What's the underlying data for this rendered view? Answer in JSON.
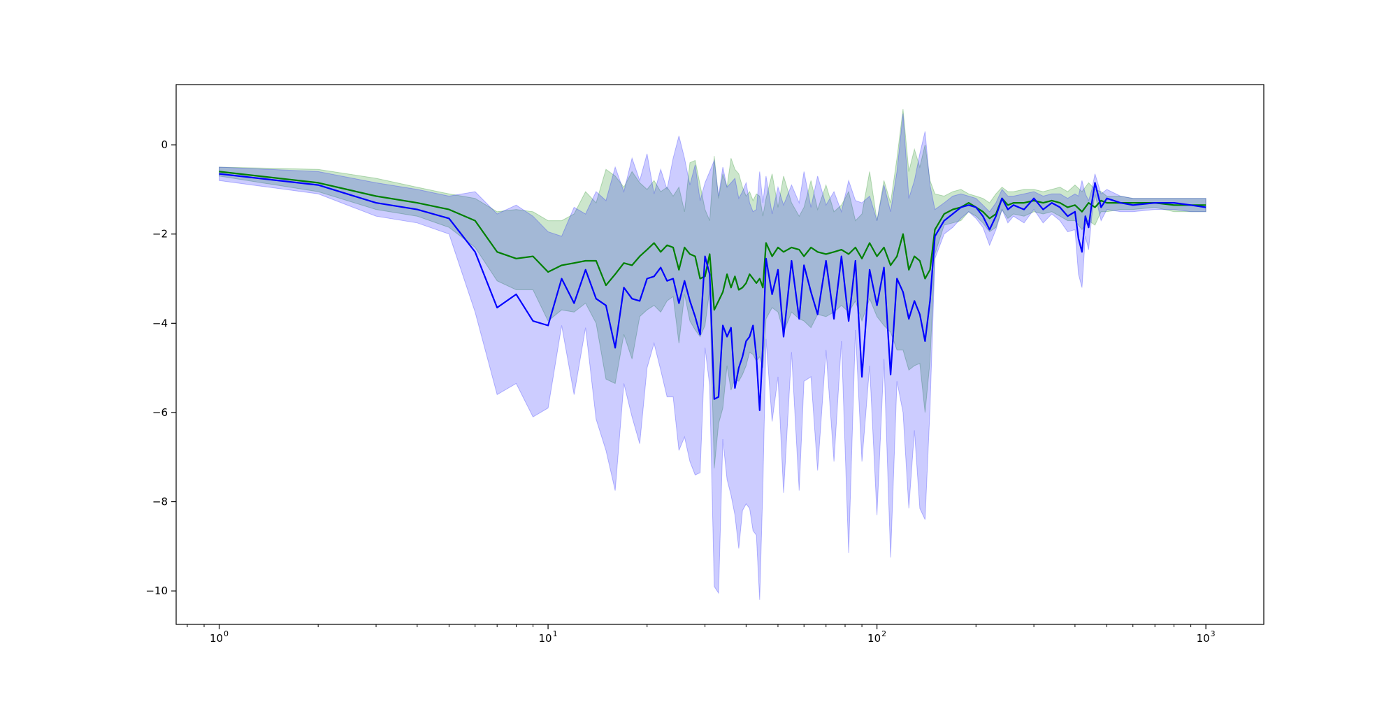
{
  "chart_data": {
    "type": "line",
    "title": "",
    "xlabel": "",
    "ylabel": "",
    "x_scale": "log",
    "xlim": [
      0.74,
      1500
    ],
    "ylim": [
      -10.75,
      1.35
    ],
    "grid": false,
    "legend": "none",
    "x_ticks": [
      {
        "value": 1,
        "base": "10",
        "exp": "0"
      },
      {
        "value": 10,
        "base": "10",
        "exp": "1"
      },
      {
        "value": 100,
        "base": "10",
        "exp": "2"
      },
      {
        "value": 1000,
        "base": "10",
        "exp": "3"
      }
    ],
    "y_ticks": [
      {
        "value": 0,
        "label": "0"
      },
      {
        "value": -2,
        "label": "−2"
      },
      {
        "value": -4,
        "label": "−4"
      },
      {
        "value": -6,
        "label": "−6"
      },
      {
        "value": -8,
        "label": "−8"
      },
      {
        "value": -10,
        "label": "−10"
      }
    ],
    "series": [
      {
        "color": "#008000",
        "band_color": "#008000",
        "x": [
          1,
          2,
          3,
          4,
          5,
          6,
          7,
          8,
          9,
          10,
          11,
          12,
          13,
          14,
          15,
          16,
          17,
          18,
          19,
          20,
          21,
          22,
          23,
          24,
          25,
          26,
          27,
          28,
          29,
          30,
          31,
          32,
          33,
          34,
          35,
          36,
          37,
          38,
          39,
          40,
          41,
          42,
          43,
          44,
          45,
          46,
          48,
          50,
          52,
          55,
          58,
          60,
          63,
          66,
          70,
          74,
          78,
          82,
          86,
          90,
          95,
          100,
          105,
          110,
          115,
          120,
          125,
          130,
          135,
          140,
          145,
          150,
          160,
          170,
          180,
          190,
          200,
          210,
          220,
          230,
          240,
          250,
          260,
          280,
          300,
          320,
          340,
          360,
          380,
          400,
          420,
          440,
          460,
          480,
          500,
          550,
          600,
          700,
          800,
          900,
          1000
        ],
        "mean": [
          -0.6,
          -0.85,
          -1.15,
          -1.3,
          -1.45,
          -1.7,
          -2.4,
          -2.55,
          -2.5,
          -2.85,
          -2.7,
          -2.65,
          -2.6,
          -2.6,
          -3.15,
          -2.9,
          -2.65,
          -2.7,
          -2.5,
          -2.35,
          -2.2,
          -2.4,
          -2.25,
          -2.3,
          -2.8,
          -2.3,
          -2.45,
          -2.5,
          -3.0,
          -2.95,
          -2.45,
          -3.7,
          -3.5,
          -3.3,
          -2.9,
          -3.2,
          -2.95,
          -3.25,
          -3.2,
          -3.1,
          -2.9,
          -3.0,
          -3.1,
          -3.0,
          -3.2,
          -2.2,
          -2.5,
          -2.3,
          -2.4,
          -2.3,
          -2.35,
          -2.5,
          -2.3,
          -2.4,
          -2.45,
          -2.4,
          -2.35,
          -2.45,
          -2.3,
          -2.55,
          -2.2,
          -2.5,
          -2.3,
          -2.7,
          -2.5,
          -2.0,
          -2.8,
          -2.5,
          -2.6,
          -3.0,
          -2.8,
          -1.9,
          -1.55,
          -1.45,
          -1.4,
          -1.3,
          -1.4,
          -1.5,
          -1.65,
          -1.55,
          -1.2,
          -1.35,
          -1.3,
          -1.3,
          -1.25,
          -1.3,
          -1.25,
          -1.3,
          -1.4,
          -1.35,
          -1.5,
          -1.3,
          -1.4,
          -1.25,
          -1.3,
          -1.3,
          -1.3,
          -1.3,
          -1.35,
          -1.35,
          -1.35
        ],
        "upper": [
          -0.5,
          -0.55,
          -0.75,
          -0.95,
          -1.1,
          -1.2,
          -1.5,
          -1.45,
          -1.5,
          -1.7,
          -1.7,
          -1.55,
          -1.05,
          -1.3,
          -0.55,
          -0.7,
          -0.95,
          -0.6,
          -0.85,
          -1.0,
          -0.8,
          -1.05,
          -0.95,
          -1.15,
          -0.95,
          -1.5,
          -0.4,
          -0.35,
          -0.9,
          -1.45,
          -1.7,
          -0.25,
          -1.2,
          -0.65,
          -0.95,
          -0.3,
          -0.55,
          -0.65,
          -0.95,
          -1.15,
          -1.05,
          -1.25,
          -1.1,
          -1.15,
          -1.6,
          -1.2,
          -0.65,
          -1.4,
          -0.7,
          -1.3,
          -1.6,
          -1.4,
          -0.8,
          -1.45,
          -0.9,
          -1.5,
          -1.35,
          -1.05,
          -1.7,
          -1.55,
          -0.6,
          -1.7,
          -0.8,
          -1.3,
          -0.3,
          0.8,
          -0.6,
          -0.1,
          -0.5,
          0.0,
          -0.8,
          -1.1,
          -1.15,
          -1.05,
          -1.0,
          -1.1,
          -1.15,
          -1.2,
          -1.3,
          -1.1,
          -0.95,
          -1.05,
          -1.05,
          -1.0,
          -1.0,
          -1.05,
          -1.0,
          -0.95,
          -1.05,
          -0.9,
          -1.05,
          -0.85,
          -1.0,
          -1.05,
          -1.15,
          -1.15,
          -1.2,
          -1.2,
          -1.2,
          -1.2,
          -1.2
        ],
        "lower": [
          -0.7,
          -1.05,
          -1.45,
          -1.6,
          -1.85,
          -2.3,
          -3.05,
          -3.25,
          -3.25,
          -3.95,
          -3.7,
          -3.75,
          -3.55,
          -4.0,
          -5.25,
          -5.35,
          -4.25,
          -4.8,
          -3.85,
          -3.7,
          -3.6,
          -3.75,
          -3.5,
          -3.4,
          -4.45,
          -3.35,
          -3.95,
          -4.15,
          -4.3,
          -4.05,
          -3.25,
          -7.25,
          -6.25,
          -5.9,
          -4.95,
          -5.5,
          -5.25,
          -5.3,
          -5.15,
          -4.95,
          -4.65,
          -4.7,
          -4.85,
          -4.75,
          -5.0,
          -3.9,
          -3.65,
          -3.75,
          -4.2,
          -3.75,
          -3.9,
          -3.95,
          -4.1,
          -3.8,
          -3.85,
          -3.75,
          -3.6,
          -3.75,
          -3.5,
          -3.95,
          -3.45,
          -3.85,
          -4.05,
          -4.2,
          -4.6,
          -4.6,
          -5.05,
          -4.95,
          -4.9,
          -6.0,
          -4.85,
          -2.45,
          -1.8,
          -1.75,
          -1.7,
          -1.5,
          -1.6,
          -1.75,
          -1.95,
          -1.85,
          -1.45,
          -1.65,
          -1.55,
          -1.6,
          -1.5,
          -1.55,
          -1.5,
          -1.6,
          -1.7,
          -1.7,
          -1.9,
          -1.7,
          -1.8,
          -1.5,
          -1.5,
          -1.45,
          -1.45,
          -1.4,
          -1.5,
          -1.5,
          -1.5
        ]
      },
      {
        "color": "#0000ff",
        "band_color": "#0000ff",
        "x": [
          1,
          2,
          3,
          4,
          5,
          6,
          7,
          8,
          9,
          10,
          11,
          12,
          13,
          14,
          15,
          16,
          17,
          18,
          19,
          20,
          21,
          22,
          23,
          24,
          25,
          26,
          27,
          28,
          29,
          30,
          31,
          32,
          33,
          34,
          35,
          36,
          37,
          38,
          39,
          40,
          41,
          42,
          43,
          44,
          45,
          46,
          48,
          50,
          52,
          55,
          58,
          60,
          63,
          66,
          70,
          74,
          78,
          82,
          86,
          90,
          95,
          100,
          105,
          110,
          115,
          120,
          125,
          130,
          135,
          140,
          145,
          150,
          160,
          170,
          180,
          190,
          200,
          210,
          220,
          230,
          240,
          250,
          260,
          280,
          300,
          320,
          340,
          360,
          380,
          400,
          410,
          420,
          430,
          440,
          450,
          460,
          480,
          500,
          550,
          600,
          700,
          800,
          900,
          1000
        ],
        "mean": [
          -0.65,
          -0.9,
          -1.3,
          -1.45,
          -1.65,
          -2.4,
          -3.65,
          -3.35,
          -3.95,
          -4.05,
          -3.0,
          -3.55,
          -2.8,
          -3.45,
          -3.6,
          -4.55,
          -3.2,
          -3.45,
          -3.5,
          -3.0,
          -2.95,
          -2.75,
          -3.05,
          -3.0,
          -3.55,
          -3.05,
          -3.5,
          -3.85,
          -4.25,
          -2.5,
          -2.9,
          -5.7,
          -5.65,
          -4.05,
          -4.3,
          -4.1,
          -5.45,
          -5.0,
          -4.75,
          -4.4,
          -4.3,
          -4.05,
          -4.75,
          -5.95,
          -4.5,
          -2.55,
          -3.35,
          -2.8,
          -4.3,
          -2.6,
          -3.9,
          -2.7,
          -3.3,
          -3.8,
          -2.6,
          -3.9,
          -2.5,
          -3.95,
          -2.6,
          -5.2,
          -2.8,
          -3.6,
          -2.75,
          -5.15,
          -3.0,
          -3.3,
          -3.9,
          -3.5,
          -3.8,
          -4.4,
          -3.5,
          -2.05,
          -1.7,
          -1.55,
          -1.4,
          -1.35,
          -1.4,
          -1.6,
          -1.9,
          -1.6,
          -1.2,
          -1.45,
          -1.35,
          -1.45,
          -1.2,
          -1.45,
          -1.3,
          -1.4,
          -1.6,
          -1.5,
          -2.1,
          -2.4,
          -1.6,
          -1.85,
          -1.3,
          -0.85,
          -1.4,
          -1.2,
          -1.3,
          -1.35,
          -1.3,
          -1.3,
          -1.35,
          -1.4
        ],
        "upper": [
          -0.5,
          -0.6,
          -0.85,
          -1.0,
          -1.15,
          -1.05,
          -1.55,
          -1.35,
          -1.6,
          -1.95,
          -2.05,
          -1.4,
          -1.55,
          -1.05,
          -1.25,
          -0.5,
          -1.05,
          -0.3,
          -0.8,
          -0.2,
          -1.1,
          -0.55,
          -1.0,
          -0.3,
          0.2,
          -0.3,
          -0.9,
          -0.45,
          -1.25,
          -0.85,
          -0.6,
          -0.35,
          -1.15,
          -0.5,
          -0.95,
          -0.85,
          -0.75,
          -1.2,
          -1.05,
          -0.85,
          -1.3,
          -1.5,
          -1.45,
          -0.6,
          -1.3,
          -0.7,
          -1.55,
          -0.95,
          -1.35,
          -0.9,
          -1.3,
          -0.6,
          -1.4,
          -0.7,
          -1.35,
          -1.05,
          -1.5,
          -0.8,
          -1.25,
          -1.3,
          -1.15,
          -1.7,
          -0.9,
          -1.5,
          -0.6,
          0.7,
          -1.2,
          -0.8,
          -0.2,
          0.3,
          -0.9,
          -1.45,
          -1.3,
          -1.15,
          -1.1,
          -1.15,
          -1.2,
          -1.35,
          -1.5,
          -1.3,
          -1.0,
          -1.15,
          -1.15,
          -1.1,
          -1.05,
          -1.15,
          -1.1,
          -1.1,
          -1.2,
          -1.1,
          -1.15,
          -0.8,
          -1.1,
          -1.25,
          -1.0,
          -0.65,
          -1.1,
          -1.0,
          -1.15,
          -1.2,
          -1.2,
          -1.2,
          -1.2,
          -1.2
        ],
        "lower": [
          -0.8,
          -1.1,
          -1.6,
          -1.75,
          -2.0,
          -3.75,
          -5.6,
          -5.35,
          -6.1,
          -5.9,
          -4.05,
          -5.6,
          -4.1,
          -6.15,
          -6.85,
          -7.75,
          -5.35,
          -6.1,
          -6.7,
          -5.0,
          -4.45,
          -5.05,
          -5.65,
          -5.65,
          -6.85,
          -6.55,
          -7.1,
          -7.4,
          -7.35,
          -4.55,
          -5.4,
          -9.9,
          -10.05,
          -6.6,
          -7.5,
          -7.85,
          -8.3,
          -9.05,
          -8.2,
          -8.05,
          -8.15,
          -8.65,
          -8.75,
          -10.2,
          -7.65,
          -4.35,
          -6.2,
          -5.2,
          -7.8,
          -4.65,
          -7.75,
          -5.3,
          -5.2,
          -7.3,
          -4.6,
          -7.1,
          -4.4,
          -9.15,
          -4.15,
          -7.1,
          -4.95,
          -8.3,
          -4.8,
          -9.25,
          -5.3,
          -6.0,
          -8.15,
          -6.4,
          -8.15,
          -8.4,
          -5.9,
          -2.55,
          -2.0,
          -1.85,
          -1.65,
          -1.5,
          -1.65,
          -1.85,
          -2.25,
          -1.9,
          -1.45,
          -1.75,
          -1.6,
          -1.75,
          -1.45,
          -1.75,
          -1.55,
          -1.7,
          -1.95,
          -1.9,
          -2.9,
          -3.2,
          -2.05,
          -2.35,
          -1.6,
          -1.1,
          -1.7,
          -1.45,
          -1.5,
          -1.5,
          -1.45,
          -1.45,
          -1.5,
          -1.5
        ]
      }
    ]
  }
}
